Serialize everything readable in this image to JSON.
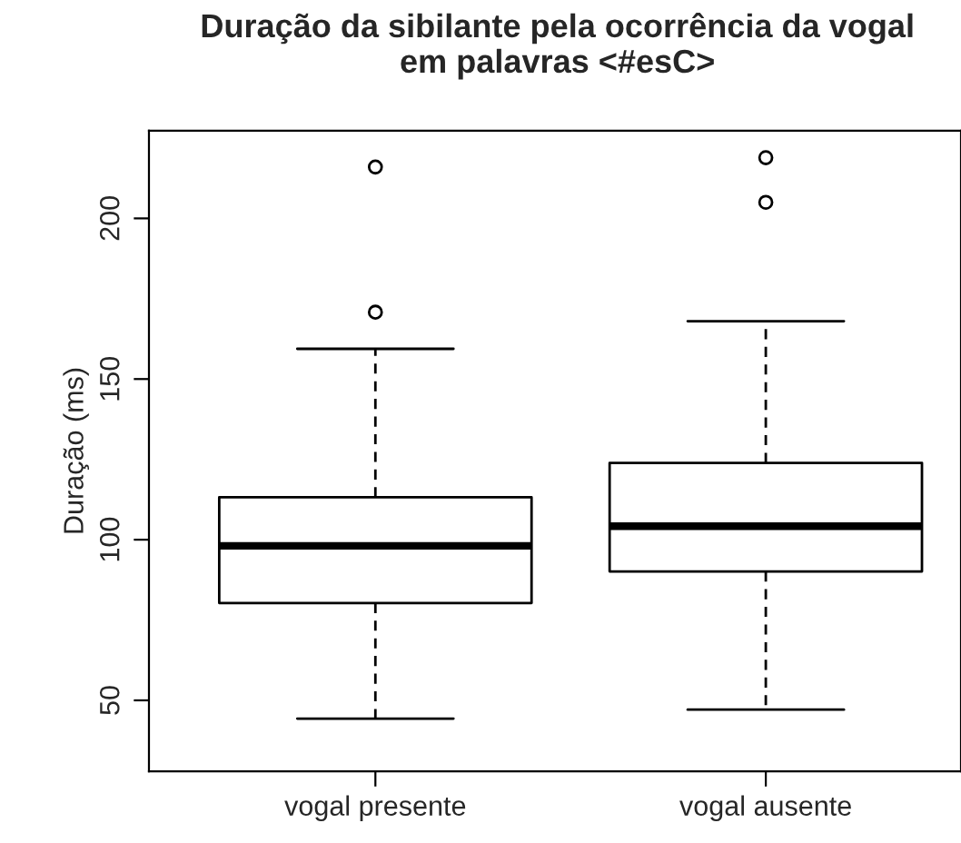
{
  "chart_data": {
    "type": "box",
    "title": "Duração da sibilante pela ocorrência da vogal\nem palavras <#esC>",
    "ylabel": "Duração (ms)",
    "categories": [
      "vogal presente",
      "vogal ausente"
    ],
    "boxes": [
      {
        "low": 44.3,
        "q1": 80.3,
        "median": 98.1,
        "q3": 113.2,
        "high": 159.4,
        "outliers": [
          170.8,
          216.0
        ]
      },
      {
        "low": 47.1,
        "q1": 90.1,
        "median": 104.2,
        "q3": 123.9,
        "high": 168.0,
        "outliers": [
          205.0,
          218.9
        ]
      }
    ],
    "ylim": [
      27.9,
      227.3
    ],
    "yticks": [
      50,
      100,
      150,
      200
    ],
    "grid": false,
    "legend": false
  }
}
